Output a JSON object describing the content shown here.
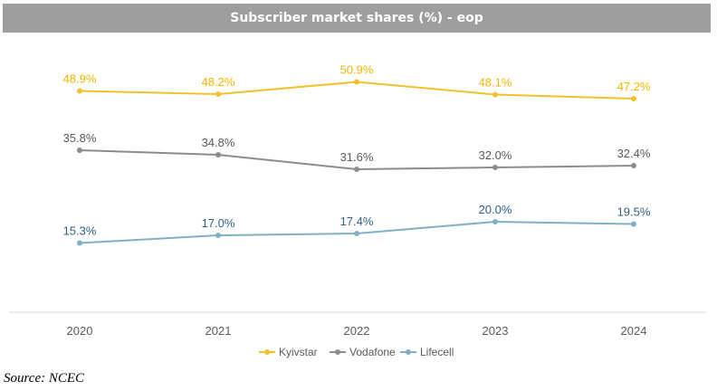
{
  "chart_data": {
    "type": "line",
    "title": "Subscriber market shares (%) - eop",
    "categories": [
      "2020",
      "2021",
      "2022",
      "2023",
      "2024"
    ],
    "series": [
      {
        "name": "Kyivstar",
        "values": [
          48.9,
          48.2,
          50.9,
          48.1,
          47.2
        ],
        "labels": [
          "48.9%",
          "48.2%",
          "50.9%",
          "48.1%",
          "47.2%"
        ],
        "color": "#f2c12e",
        "label_color": "#f2b400"
      },
      {
        "name": "Vodafone",
        "values": [
          35.8,
          34.8,
          31.6,
          32.0,
          32.4
        ],
        "labels": [
          "35.8%",
          "34.8%",
          "31.6%",
          "32.0%",
          "32.4%"
        ],
        "color": "#8c8c8c",
        "label_color": "#595959"
      },
      {
        "name": "Lifecell",
        "values": [
          15.3,
          17.0,
          17.4,
          20.0,
          19.5
        ],
        "labels": [
          "15.3%",
          "17.0%",
          "17.4%",
          "20.0%",
          "19.5%"
        ],
        "color": "#7fb0c6",
        "label_color": "#2f5f82"
      }
    ],
    "legend_position": "bottom"
  },
  "source": "Source: NCEC"
}
